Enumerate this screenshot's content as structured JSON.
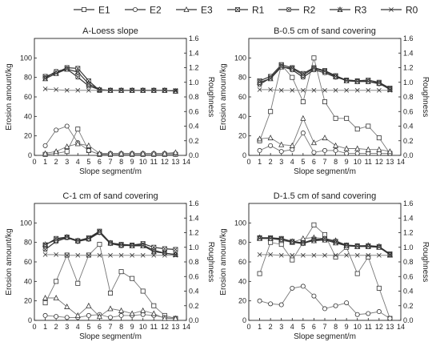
{
  "legend": {
    "items": [
      {
        "label": "E1",
        "marker": "square"
      },
      {
        "label": "E2",
        "marker": "circle"
      },
      {
        "label": "E3",
        "marker": "triangle"
      },
      {
        "label": "R1",
        "marker": "square-x"
      },
      {
        "label": "R2",
        "marker": "circle-x"
      },
      {
        "label": "R3",
        "marker": "triangle-x"
      },
      {
        "label": "R0",
        "marker": "x"
      }
    ]
  },
  "colors": {
    "line": "#333333",
    "line_light": "#777777",
    "axis": "#222222"
  },
  "chart_data": [
    {
      "type": "line",
      "title": "A-Loess slope",
      "xlabel": "Slope segment/m",
      "ylabel": "Erosion amount/kg",
      "y2label": "Roughness",
      "xlim": [
        0,
        14
      ],
      "ylim": [
        0,
        120
      ],
      "y2lim": [
        0,
        1.6
      ],
      "xticks": [
        0,
        1,
        2,
        3,
        4,
        5,
        6,
        7,
        8,
        9,
        10,
        11,
        12,
        13,
        14
      ],
      "yticks": [
        0,
        20,
        40,
        60,
        80,
        100
      ],
      "y2ticks": [
        0,
        0.2,
        0.4,
        0.6,
        0.8,
        1.0,
        1.2,
        1.4,
        1.6
      ],
      "x": [
        1,
        2,
        3,
        4,
        5,
        6,
        7,
        8,
        9,
        10,
        11,
        12,
        13
      ],
      "series": [
        {
          "name": "E1",
          "axis": "left",
          "values": [
            1,
            2,
            4,
            27,
            5,
            1,
            1,
            1,
            1,
            1,
            1,
            1,
            1
          ]
        },
        {
          "name": "E2",
          "axis": "left",
          "values": [
            10,
            26,
            30,
            13,
            5,
            1,
            2,
            2,
            2,
            2,
            2,
            2,
            2
          ]
        },
        {
          "name": "E3",
          "axis": "left",
          "values": [
            2,
            4,
            9,
            12,
            10,
            2,
            2,
            2,
            2,
            2,
            2,
            2,
            3
          ]
        },
        {
          "name": "R1",
          "axis": "right",
          "values": [
            1.08,
            1.13,
            1.2,
            1.19,
            1.02,
            0.89,
            0.89,
            0.89,
            0.89,
            0.89,
            0.89,
            0.89,
            0.88
          ]
        },
        {
          "name": "R2",
          "axis": "right",
          "values": [
            1.06,
            1.15,
            1.18,
            1.07,
            0.95,
            0.9,
            0.89,
            0.89,
            0.89,
            0.89,
            0.89,
            0.89,
            0.88
          ]
        },
        {
          "name": "R3",
          "axis": "right",
          "values": [
            1.05,
            1.12,
            1.18,
            1.14,
            0.98,
            0.9,
            0.89,
            0.89,
            0.89,
            0.89,
            0.89,
            0.89,
            0.88
          ]
        },
        {
          "name": "R0",
          "axis": "right",
          "values": [
            0.91,
            0.9,
            0.89,
            0.89,
            0.89,
            0.89,
            0.89,
            0.89,
            0.89,
            0.89,
            0.89,
            0.89,
            0.89
          ]
        }
      ]
    },
    {
      "type": "line",
      "title": "B-0.5 cm of sand covering",
      "xlabel": "Slope segment/m",
      "ylabel": "Erosion amount/kg",
      "y2label": "Roughness",
      "xlim": [
        0,
        14
      ],
      "ylim": [
        0,
        120
      ],
      "y2lim": [
        0,
        1.6
      ],
      "xticks": [
        0,
        1,
        2,
        3,
        4,
        5,
        6,
        7,
        8,
        9,
        10,
        11,
        12,
        13,
        14
      ],
      "yticks": [
        0,
        20,
        40,
        60,
        80,
        100
      ],
      "y2ticks": [
        0,
        0.2,
        0.4,
        0.6,
        0.8,
        1.0,
        1.2,
        1.4,
        1.6
      ],
      "x": [
        1,
        2,
        3,
        4,
        5,
        6,
        7,
        8,
        9,
        10,
        11,
        12,
        13
      ],
      "series": [
        {
          "name": "E1",
          "axis": "left",
          "values": [
            15,
            45,
            93,
            80,
            55,
            100,
            55,
            38,
            38,
            27,
            30,
            18,
            2
          ]
        },
        {
          "name": "E2",
          "axis": "left",
          "values": [
            5,
            10,
            4,
            6,
            23,
            3,
            5,
            5,
            2,
            2,
            2,
            2,
            2
          ]
        },
        {
          "name": "E3",
          "axis": "left",
          "values": [
            17,
            18,
            11,
            10,
            38,
            13,
            18,
            10,
            7,
            7,
            6,
            6,
            4
          ]
        },
        {
          "name": "R1",
          "axis": "right",
          "values": [
            1.02,
            1.08,
            1.24,
            1.2,
            1.12,
            1.2,
            1.16,
            1.09,
            1.03,
            1.02,
            1.03,
            1.0,
            0.92
          ]
        },
        {
          "name": "R2",
          "axis": "right",
          "values": [
            0.97,
            1.06,
            1.22,
            1.17,
            1.07,
            1.17,
            1.13,
            1.07,
            1.03,
            1.02,
            1.01,
            0.98,
            0.91
          ]
        },
        {
          "name": "R3",
          "axis": "right",
          "values": [
            1.0,
            1.05,
            1.21,
            1.19,
            1.1,
            1.19,
            1.15,
            1.08,
            1.02,
            1.01,
            1.01,
            0.99,
            0.9
          ]
        },
        {
          "name": "R0",
          "axis": "right",
          "values": [
            0.9,
            0.9,
            0.89,
            0.89,
            0.89,
            0.89,
            0.89,
            0.89,
            0.89,
            0.89,
            0.89,
            0.89,
            0.89
          ]
        }
      ]
    },
    {
      "type": "line",
      "title": "C-1 cm of sand covering",
      "xlabel": "Slope segment/m",
      "ylabel": "Erosion amount/kg",
      "y2label": "Roughness",
      "xlim": [
        0,
        14
      ],
      "ylim": [
        0,
        120
      ],
      "y2lim": [
        0,
        1.6
      ],
      "xticks": [
        0,
        1,
        2,
        3,
        4,
        5,
        6,
        7,
        8,
        9,
        10,
        11,
        12,
        13,
        14
      ],
      "yticks": [
        0,
        20,
        40,
        60,
        80,
        100
      ],
      "y2ticks": [
        0,
        0.2,
        0.4,
        0.6,
        0.8,
        1.0,
        1.2,
        1.4,
        1.6
      ],
      "x": [
        1,
        2,
        3,
        4,
        5,
        6,
        7,
        8,
        9,
        10,
        11,
        12,
        13
      ],
      "series": [
        {
          "name": "E1",
          "axis": "left",
          "values": [
            18,
            40,
            67,
            38,
            67,
            78,
            28,
            50,
            43,
            30,
            15,
            5,
            2
          ]
        },
        {
          "name": "E2",
          "axis": "left",
          "values": [
            5,
            4,
            3,
            3,
            5,
            6,
            3,
            5,
            5,
            6,
            5,
            3,
            2
          ]
        },
        {
          "name": "E3",
          "axis": "left",
          "values": [
            23,
            23,
            14,
            5,
            15,
            4,
            12,
            10,
            7,
            10,
            7,
            2,
            2
          ]
        },
        {
          "name": "R1",
          "axis": "right",
          "values": [
            1.03,
            1.12,
            1.14,
            1.09,
            1.13,
            1.22,
            1.06,
            1.04,
            1.03,
            1.05,
            1.0,
            0.98,
            0.97
          ]
        },
        {
          "name": "R2",
          "axis": "right",
          "values": [
            0.97,
            1.08,
            1.13,
            1.08,
            1.11,
            1.2,
            1.05,
            1.02,
            1.03,
            1.03,
            0.96,
            0.92,
            0.9
          ]
        },
        {
          "name": "R3",
          "axis": "right",
          "values": [
            1.04,
            1.1,
            1.14,
            1.09,
            1.12,
            1.21,
            1.06,
            1.03,
            1.02,
            1.02,
            0.94,
            0.92,
            0.9
          ]
        },
        {
          "name": "R0",
          "axis": "right",
          "values": [
            0.9,
            0.9,
            0.89,
            0.89,
            0.89,
            0.89,
            0.89,
            0.89,
            0.89,
            0.89,
            0.89,
            0.89,
            0.89
          ]
        }
      ]
    },
    {
      "type": "line",
      "title": "D-1.5 cm of sand covering",
      "xlabel": "Slope segment/m",
      "ylabel": "Erosion amount/kg",
      "y2label": "Roughness",
      "xlim": [
        0,
        14
      ],
      "ylim": [
        0,
        120
      ],
      "y2lim": [
        0,
        1.6
      ],
      "xticks": [
        0,
        1,
        2,
        3,
        4,
        5,
        6,
        7,
        8,
        9,
        10,
        11,
        12,
        13,
        14
      ],
      "yticks": [
        0,
        20,
        40,
        60,
        80,
        100
      ],
      "y2ticks": [
        0,
        0.2,
        0.4,
        0.6,
        0.8,
        1.0,
        1.2,
        1.4,
        1.6
      ],
      "x": [
        1,
        2,
        3,
        4,
        5,
        6,
        7,
        8,
        9,
        10,
        11,
        12,
        13
      ],
      "series": [
        {
          "name": "E1",
          "axis": "left",
          "values": [
            48,
            80,
            78,
            62,
            80,
            98,
            88,
            65,
            75,
            48,
            65,
            33,
            2
          ]
        },
        {
          "name": "E2",
          "axis": "left",
          "values": [
            20,
            17,
            16,
            33,
            35,
            25,
            12,
            15,
            18,
            6,
            7,
            9,
            2
          ]
        },
        {
          "name": "E3",
          "axis": "left",
          "values": [
            85,
            84,
            82,
            80,
            84,
            85,
            84,
            82,
            77,
            76,
            77,
            76,
            67
          ]
        },
        {
          "name": "R1",
          "axis": "right",
          "values": [
            1.13,
            1.13,
            1.12,
            1.08,
            1.06,
            1.11,
            1.11,
            1.08,
            1.03,
            1.02,
            1.02,
            1.01,
            0.91
          ]
        },
        {
          "name": "R2",
          "axis": "right",
          "values": [
            1.13,
            1.12,
            1.11,
            1.07,
            1.05,
            1.1,
            1.12,
            1.07,
            1.02,
            1.02,
            1.01,
            1.0,
            0.9
          ]
        },
        {
          "name": "R3",
          "axis": "right",
          "values": [
            1.12,
            1.12,
            1.11,
            1.08,
            1.06,
            1.09,
            1.1,
            1.06,
            1.02,
            1.01,
            1.01,
            1.0,
            0.9
          ]
        },
        {
          "name": "R0",
          "axis": "right",
          "values": [
            0.9,
            0.9,
            0.89,
            0.89,
            0.89,
            0.89,
            0.89,
            0.89,
            0.89,
            0.89,
            0.89,
            0.89,
            0.89
          ]
        }
      ]
    }
  ]
}
